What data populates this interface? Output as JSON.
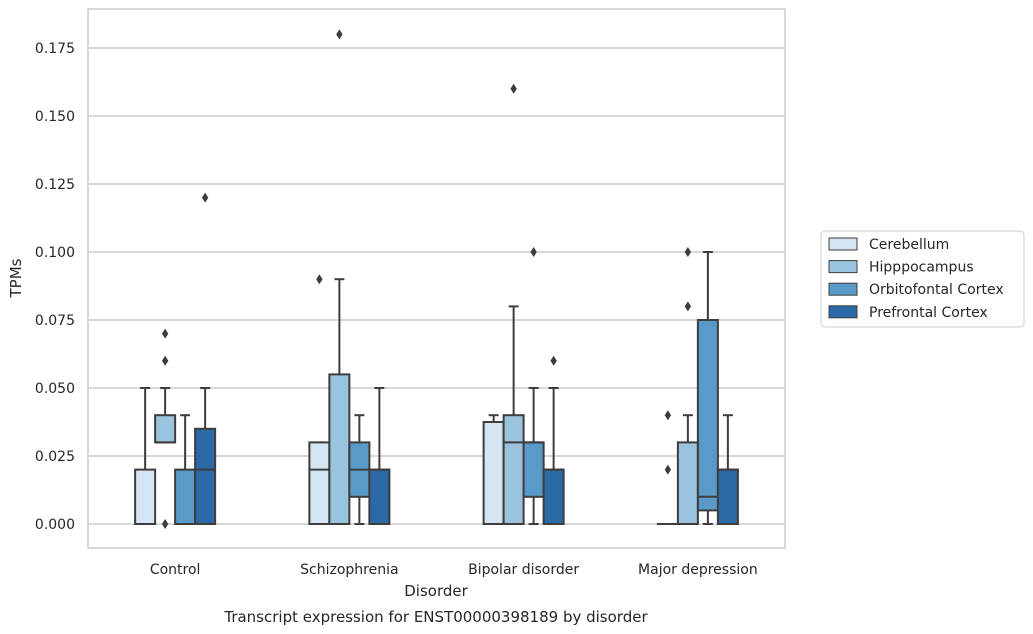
{
  "chart_data": {
    "type": "boxplot",
    "xlabel": "Disorder",
    "ylabel": "TPMs",
    "caption": "Transcript expression for ENST00000398189 by disorder",
    "ylim": [
      -0.0175,
      0.1825
    ],
    "yticks": [
      "0.000",
      "0.025",
      "0.050",
      "0.075",
      "0.100",
      "0.125",
      "0.150",
      "0.175"
    ],
    "grid": "horizontal",
    "legend_position": "right",
    "categories": [
      "Control",
      "Schizophrenia",
      "Bipolar disorder",
      "Major depression"
    ],
    "series": [
      {
        "name": "Cerebellum",
        "color": "#d6e5f3",
        "boxes": [
          {
            "q1": 0.0,
            "median": 0.0,
            "q3": 0.02,
            "whisker_low": 0.0,
            "whisker_high": 0.05,
            "outliers": []
          },
          {
            "q1": 0.0,
            "median": 0.02,
            "q3": 0.03,
            "whisker_low": 0.0,
            "whisker_high": 0.03,
            "outliers": [
              0.09
            ]
          },
          {
            "q1": 0.0,
            "median": 0.0,
            "q3": 0.0375,
            "whisker_low": 0.0,
            "whisker_high": 0.04,
            "outliers": []
          },
          {
            "q1": 0.0,
            "median": 0.0,
            "q3": 0.0,
            "whisker_low": 0.0,
            "whisker_high": 0.0,
            "outliers": [
              0.02,
              0.04
            ]
          }
        ]
      },
      {
        "name": "Hipppocampus",
        "color": "#9ac3dd",
        "boxes": [
          {
            "q1": 0.03,
            "median": 0.03,
            "q3": 0.04,
            "whisker_low": 0.03,
            "whisker_high": 0.05,
            "outliers": [
              0.0,
              0.06,
              0.07
            ]
          },
          {
            "q1": 0.0,
            "median": 0.0,
            "q3": 0.055,
            "whisker_low": 0.0,
            "whisker_high": 0.09,
            "outliers": [
              0.18
            ]
          },
          {
            "q1": 0.0,
            "median": 0.03,
            "q3": 0.04,
            "whisker_low": 0.0,
            "whisker_high": 0.08,
            "outliers": [
              0.16
            ]
          },
          {
            "q1": 0.0,
            "median": 0.0,
            "q3": 0.03,
            "whisker_low": 0.0,
            "whisker_high": 0.04,
            "outliers": [
              0.08,
              0.1
            ]
          }
        ]
      },
      {
        "name": "Orbitofontal Cortex",
        "color": "#5a9ac8",
        "boxes": [
          {
            "q1": 0.0,
            "median": 0.0,
            "q3": 0.02,
            "whisker_low": 0.0,
            "whisker_high": 0.04,
            "outliers": []
          },
          {
            "q1": 0.01,
            "median": 0.02,
            "q3": 0.03,
            "whisker_low": 0.0,
            "whisker_high": 0.04,
            "outliers": []
          },
          {
            "q1": 0.01,
            "median": 0.03,
            "q3": 0.03,
            "whisker_low": 0.0,
            "whisker_high": 0.05,
            "outliers": [
              0.1
            ]
          },
          {
            "q1": 0.005,
            "median": 0.01,
            "q3": 0.075,
            "whisker_low": 0.0,
            "whisker_high": 0.1,
            "outliers": []
          }
        ]
      },
      {
        "name": "Prefrontal Cortex",
        "color": "#2b6aa7",
        "boxes": [
          {
            "q1": 0.0,
            "median": 0.02,
            "q3": 0.035,
            "whisker_low": 0.0,
            "whisker_high": 0.05,
            "outliers": [
              0.12
            ]
          },
          {
            "q1": 0.0,
            "median": 0.02,
            "q3": 0.02,
            "whisker_low": 0.0,
            "whisker_high": 0.05,
            "outliers": []
          },
          {
            "q1": 0.0,
            "median": 0.02,
            "q3": 0.02,
            "whisker_low": 0.0,
            "whisker_high": 0.05,
            "outliers": [
              0.06
            ]
          },
          {
            "q1": 0.0,
            "median": 0.02,
            "q3": 0.02,
            "whisker_low": 0.0,
            "whisker_high": 0.04,
            "outliers": []
          }
        ]
      }
    ],
    "colors": {
      "line": "#3d3d3d",
      "grid": "#cccccc",
      "frame": "#cccccc"
    }
  }
}
